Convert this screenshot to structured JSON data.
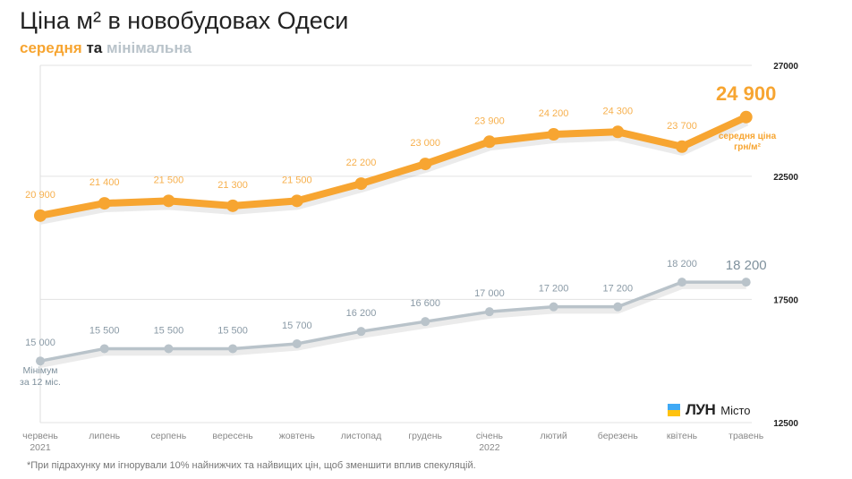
{
  "title": "Ціна м² в новобудовах Одеси",
  "subtitle": {
    "avg": "середня",
    "and": "та",
    "min": "мінімальна"
  },
  "footnote": "*При підрахунку ми ігнорували 10% найнижчих та найвищих цін, щоб зменшити вплив спекуляцій.",
  "logo": {
    "brand": "ЛУН",
    "product": "Місто",
    "colors": [
      "#3fa9f5",
      "#ffc20e"
    ]
  },
  "chart_data": {
    "type": "line",
    "categories": [
      "червень\n2021",
      "липень",
      "серпень",
      "вересень",
      "жовтень",
      "листопад",
      "грудень",
      "січень\n2022",
      "лютий",
      "березень",
      "квітень",
      "травень"
    ],
    "ylim": [
      12500,
      27000
    ],
    "y_ticks": [
      27000,
      22500,
      17500,
      12500
    ],
    "y_tick_labels": [
      "27000",
      "22500",
      "17500",
      "12500"
    ],
    "y_axis_position": "right",
    "grid": true,
    "series": [
      {
        "name": "середня",
        "color": "#f7a531",
        "values": [
          20900,
          21400,
          21500,
          21300,
          21500,
          22200,
          23000,
          23900,
          24200,
          24300,
          23700,
          24900
        ],
        "labels": [
          "20 900",
          "21 400",
          "21 500",
          "21 300",
          "21 500",
          "22 200",
          "23 000",
          "23 900",
          "24 200",
          "24 300",
          "23 700",
          "24 900"
        ],
        "last_annotation": "середня ціна грн/м²"
      },
      {
        "name": "мінімальна",
        "color": "#b9c3ca",
        "values": [
          15000,
          15500,
          15500,
          15500,
          15700,
          16200,
          16600,
          17000,
          17200,
          17200,
          18200,
          18200
        ],
        "labels": [
          "15 000",
          "15 500",
          "15 500",
          "15 500",
          "15 700",
          "16 200",
          "16 600",
          "17 000",
          "17 200",
          "17 200",
          "18 200",
          "18 200"
        ],
        "first_annotation": "Мінімум за 12 міс."
      }
    ]
  }
}
